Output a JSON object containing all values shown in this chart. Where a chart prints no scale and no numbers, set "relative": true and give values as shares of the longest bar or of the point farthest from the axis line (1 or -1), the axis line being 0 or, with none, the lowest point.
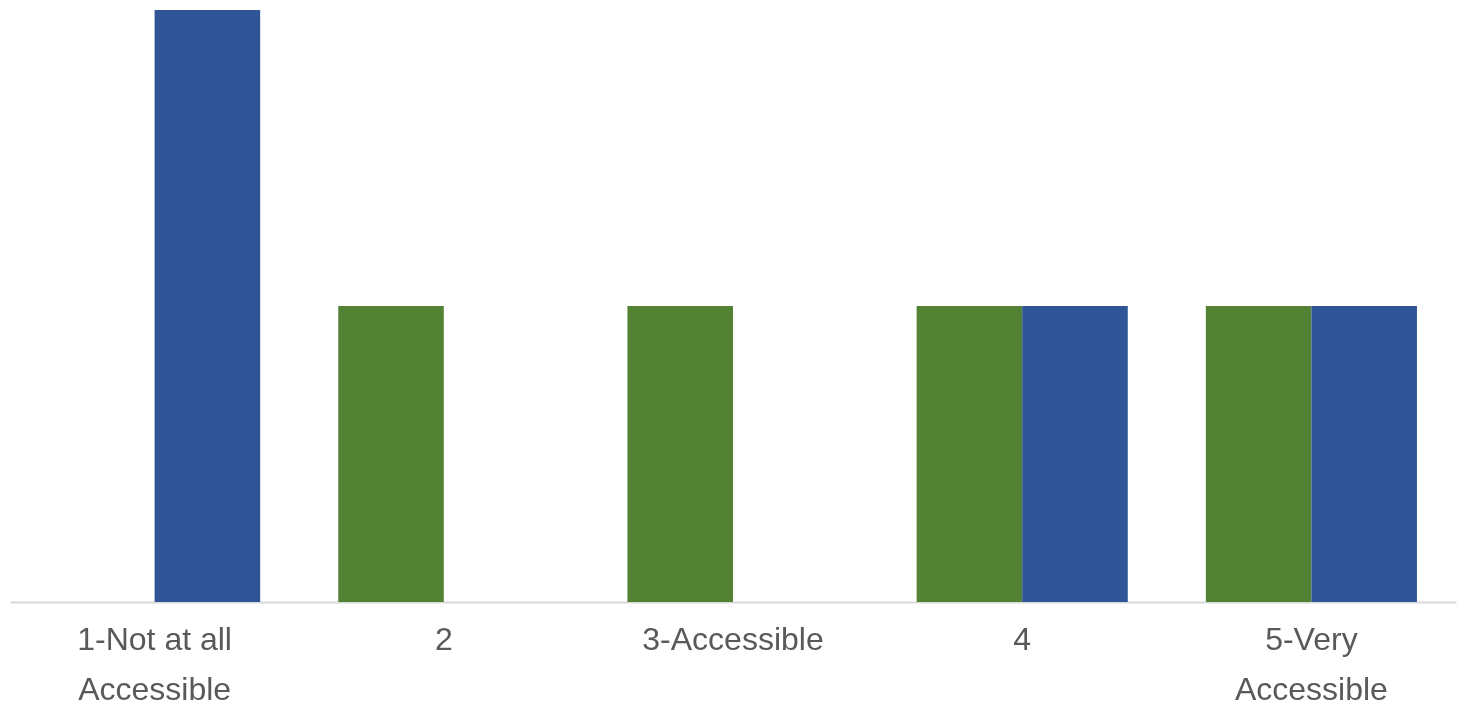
{
  "chart_data": {
    "type": "bar",
    "relative": true,
    "categories": [
      "1-Not at all Accessible",
      "2",
      "3-Accessible",
      "4",
      "5-Very Accessible"
    ],
    "series": [
      {
        "color": "#548235",
        "values": [
          null,
          0.5,
          0.5,
          0.5,
          0.5
        ]
      },
      {
        "color": "#2f5597",
        "values": [
          1,
          null,
          null,
          0.5,
          0.5
        ]
      }
    ]
  }
}
